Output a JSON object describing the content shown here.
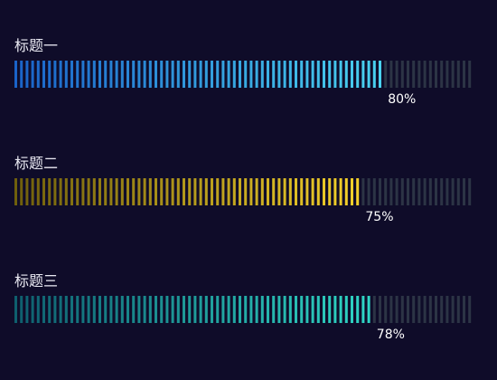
{
  "bars": [
    {
      "title": "标题一",
      "percent_label": "80%",
      "progress": 0.8,
      "color_start": "#1a63c9",
      "color_end": "#4ad2f0"
    },
    {
      "title": "标题二",
      "percent_label": "75%",
      "progress": 0.75,
      "color_start": "#6f5f0c",
      "color_end": "#f5d12a"
    },
    {
      "title": "标题三",
      "percent_label": "78%",
      "progress": 0.78,
      "color_start": "#0e5f6e",
      "color_end": "#2fd6c5"
    }
  ],
  "empty_segment_color": "#2c3445"
}
